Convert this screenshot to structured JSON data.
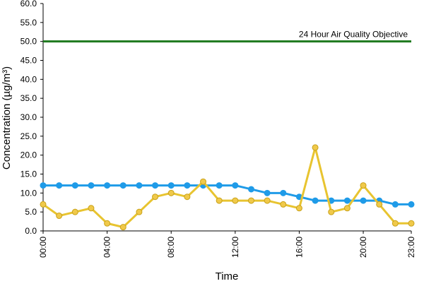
{
  "chart_data": {
    "type": "line",
    "xlabel": "Time",
    "ylabel": "Concentration (µg/m³)",
    "ylim": [
      0,
      60
    ],
    "y_ticks": [
      "0.0",
      "5.0",
      "10.0",
      "15.0",
      "20.0",
      "25.0",
      "30.0",
      "35.0",
      "40.0",
      "45.0",
      "50.0",
      "55.0",
      "60.0"
    ],
    "x_range": [
      0,
      23
    ],
    "x_ticks": [
      {
        "x": 0,
        "label": "00:00"
      },
      {
        "x": 4,
        "label": "04:00"
      },
      {
        "x": 8,
        "label": "08:00"
      },
      {
        "x": 12,
        "label": "12:00"
      },
      {
        "x": 16,
        "label": "16:00"
      },
      {
        "x": 20,
        "label": "20:00"
      },
      {
        "x": 23,
        "label": "23:00"
      }
    ],
    "grid": false,
    "hours": [
      0,
      1,
      2,
      3,
      4,
      5,
      6,
      7,
      8,
      9,
      10,
      11,
      12,
      13,
      14,
      15,
      16,
      17,
      18,
      19,
      20,
      21,
      22,
      23
    ],
    "series": [
      {
        "color": "#1f9be8",
        "marker_color": "#1f9be8",
        "values": [
          12,
          12,
          12,
          12,
          12,
          12,
          12,
          12,
          12,
          12,
          12,
          12,
          12,
          11,
          10,
          10,
          9,
          8,
          8,
          8,
          8,
          8,
          7,
          7
        ]
      },
      {
        "color": "#e8c430",
        "marker_color": "#f0c94a",
        "values": [
          7,
          4,
          5,
          6,
          2,
          1,
          5,
          9,
          10,
          9,
          13,
          8,
          8,
          8,
          8,
          7,
          6,
          22,
          5,
          6,
          12,
          7,
          2,
          2
        ]
      }
    ],
    "threshold": {
      "value": 50,
      "color": "#1f7a1f",
      "label": "24 Hour Air Quality Objective"
    }
  }
}
